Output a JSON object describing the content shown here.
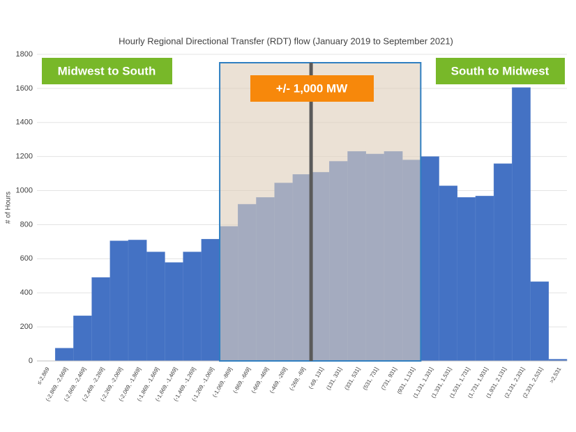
{
  "chart_data": {
    "type": "bar",
    "title": "Hourly Regional Directional Transfer (RDT) flow (January 2019 to September 2021)",
    "y_label": "# of Hours",
    "categories": [
      "≤-2,869",
      "(-2,869, -2,669]",
      "(-2,669, -2,469]",
      "(-2,469, -2,269]",
      "(-2,269, -2,069]",
      "(-2,069, -1,869]",
      "(-1,869, -1,669]",
      "(-1,669, -1,469]",
      "(-1,469, -1,269]",
      "(-1,269, -1,069]",
      "(-1,069, -869]",
      "(-869, -669]",
      "(-669, -469]",
      "(-469, -269]",
      "(-269, -69]",
      "(-69, 131]",
      "(131, 331]",
      "(331, 531]",
      "(531, 731]",
      "(731, 931]",
      "(931, 1,131]",
      "(1,131, 1,331]",
      "(1,331, 1,531]",
      "(1,531, 1,731]",
      "(1,731, 1,931]",
      "(1,931, 2,131]",
      "(2,131, 2,331]",
      "(2,331, 2,531]",
      ">2,531"
    ],
    "values": [
      0,
      75,
      265,
      490,
      705,
      710,
      640,
      578,
      640,
      715,
      790,
      920,
      960,
      1045,
      1095,
      1108,
      1172,
      1230,
      1215,
      1230,
      1180,
      1200,
      1028,
      960,
      968,
      1158,
      1605,
      465,
      10
    ],
    "color": "#4472c4",
    "ylim": [
      0,
      1800
    ],
    "yticks": [
      0,
      200,
      400,
      600,
      800,
      1000,
      1200,
      1400,
      1600,
      1800
    ],
    "grid": true,
    "annotations": [
      "Midwest to South",
      "+/- 1,000 MW",
      "South to Midwest"
    ]
  }
}
